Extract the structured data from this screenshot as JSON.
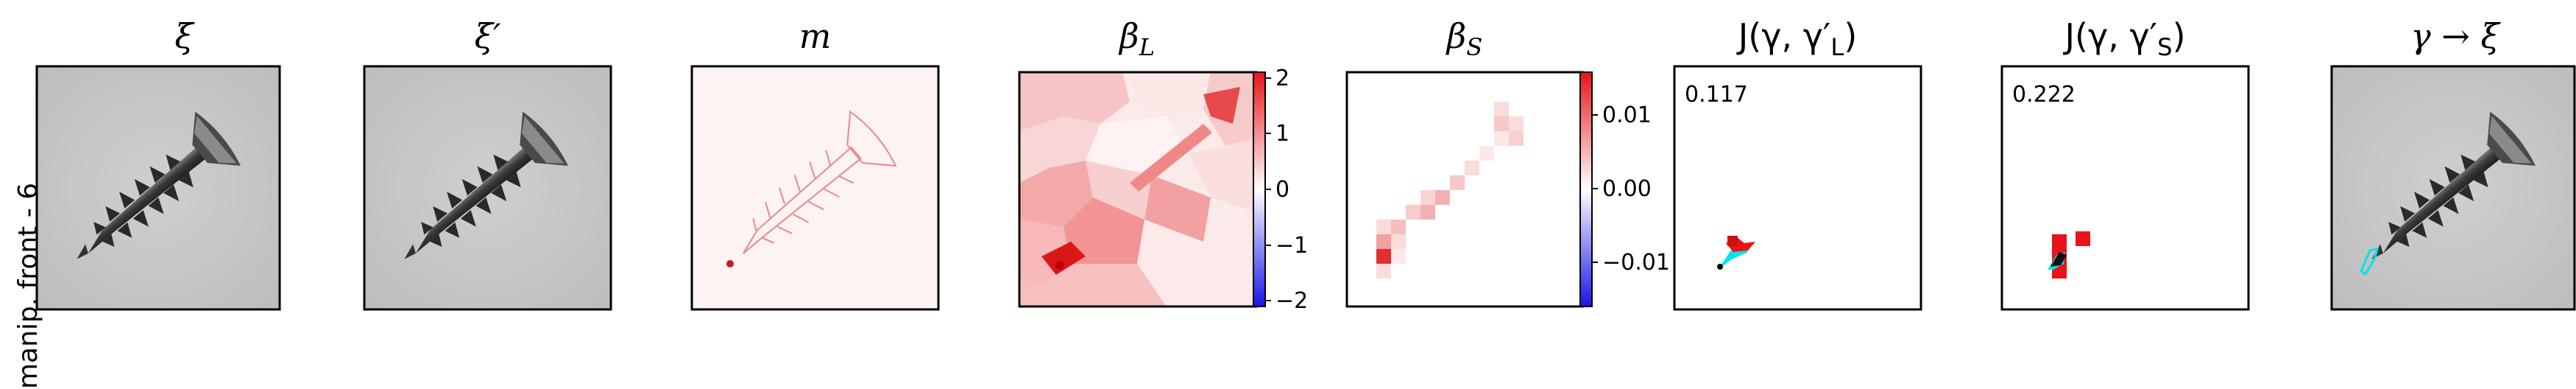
{
  "row_label": "manip. front - 6",
  "panels": [
    {
      "id": "xi",
      "title": "ξ"
    },
    {
      "id": "xi-prime",
      "title": "ξ′"
    },
    {
      "id": "m",
      "title": "m"
    },
    {
      "id": "beta-l",
      "title": "β_L"
    },
    {
      "id": "beta-s",
      "title": "β_S"
    },
    {
      "id": "j-l",
      "title": "J(γ, γ′_L)"
    },
    {
      "id": "j-s",
      "title": "J(γ, γ′_S)"
    },
    {
      "id": "gamma-xi",
      "title": "γ → ξ"
    }
  ],
  "colorbar_l": {
    "ticks": [
      "2",
      "1",
      "0",
      "−1",
      "−2"
    ]
  },
  "colorbar_s": {
    "ticks": [
      "0.01",
      "0.00",
      "−0.01"
    ]
  },
  "scores": {
    "j_l": "0.117",
    "j_s": "0.222"
  },
  "colors": {
    "positive": "#e8141a",
    "negative": "#1a14e8",
    "cyan": "#00e5e5"
  }
}
